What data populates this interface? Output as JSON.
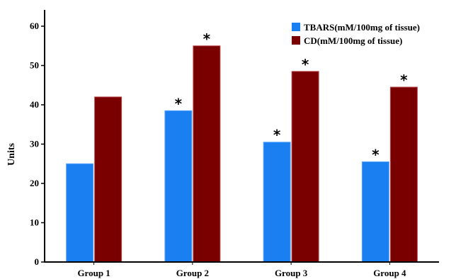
{
  "chart_data": {
    "type": "bar",
    "title": "",
    "xlabel": "",
    "ylabel": "Units",
    "categories": [
      "Group 1",
      "Group 2",
      "Group 3",
      "Group 4"
    ],
    "series": [
      {
        "name": "TBARS(mM/100mg of tissue)",
        "color": "#1a7ff0",
        "values": [
          25,
          38.5,
          30.5,
          25.5
        ]
      },
      {
        "name": "CD(mM/100mg of tissue)",
        "color": "#7a0000",
        "values": [
          42,
          55,
          48.5,
          44.5
        ]
      }
    ],
    "significance_markers": [
      {
        "series": 0,
        "category": 1,
        "symbol": "*"
      },
      {
        "series": 0,
        "category": 2,
        "symbol": "*"
      },
      {
        "series": 0,
        "category": 3,
        "symbol": "*"
      },
      {
        "series": 1,
        "category": 1,
        "symbol": "*"
      },
      {
        "series": 1,
        "category": 2,
        "symbol": "*"
      },
      {
        "series": 1,
        "category": 3,
        "symbol": "*"
      }
    ],
    "ylim": [
      0,
      60
    ],
    "yticks": [
      0,
      10,
      20,
      30,
      40,
      50,
      60
    ],
    "grid": false,
    "legend_position": "top-right"
  }
}
